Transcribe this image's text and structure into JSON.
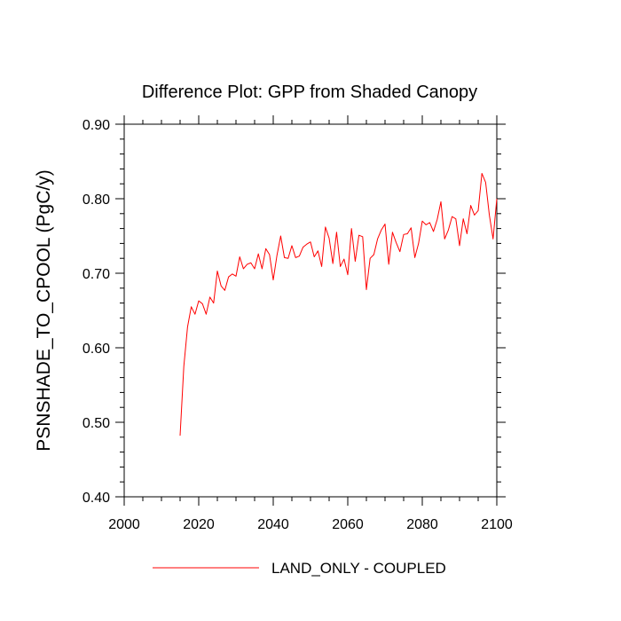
{
  "chart_data": {
    "type": "line",
    "title": "Difference Plot: GPP from Shaded Canopy",
    "xlabel": "",
    "ylabel": "PSNSHADE_TO_CPOOL  (PgC/y)",
    "xlim": [
      2000,
      2100
    ],
    "ylim": [
      0.4,
      0.9
    ],
    "x_ticks": [
      2000,
      2020,
      2040,
      2060,
      2080,
      2100
    ],
    "x_tick_labels": [
      "2000",
      "2020",
      "2040",
      "2060",
      "2080",
      "2100"
    ],
    "y_ticks": [
      0.4,
      0.5,
      0.6,
      0.7,
      0.8,
      0.9
    ],
    "y_tick_labels": [
      "0.40",
      "0.50",
      "0.60",
      "0.70",
      "0.80",
      "0.90"
    ],
    "legend_position": "bottom-center",
    "series": [
      {
        "name": "LAND_ONLY - COUPLED",
        "color": "#ff0000",
        "x": [
          2015,
          2016,
          2017,
          2018,
          2019,
          2020,
          2021,
          2022,
          2023,
          2024,
          2025,
          2026,
          2027,
          2028,
          2029,
          2030,
          2031,
          2032,
          2033,
          2034,
          2035,
          2036,
          2037,
          2038,
          2039,
          2040,
          2041,
          2042,
          2043,
          2044,
          2045,
          2046,
          2047,
          2048,
          2049,
          2050,
          2051,
          2052,
          2053,
          2054,
          2055,
          2056,
          2057,
          2058,
          2059,
          2060,
          2061,
          2062,
          2063,
          2064,
          2065,
          2066,
          2067,
          2068,
          2069,
          2070,
          2071,
          2072,
          2073,
          2074,
          2075,
          2076,
          2077,
          2078,
          2079,
          2080,
          2081,
          2082,
          2083,
          2084,
          2085,
          2086,
          2087,
          2088,
          2089,
          2090,
          2091,
          2092,
          2093,
          2094,
          2095,
          2096,
          2097,
          2098,
          2099,
          2100
        ],
        "values": [
          0.482,
          0.575,
          0.628,
          0.655,
          0.645,
          0.663,
          0.659,
          0.645,
          0.668,
          0.66,
          0.703,
          0.683,
          0.677,
          0.695,
          0.699,
          0.696,
          0.722,
          0.706,
          0.712,
          0.714,
          0.706,
          0.726,
          0.706,
          0.733,
          0.725,
          0.691,
          0.724,
          0.75,
          0.721,
          0.72,
          0.737,
          0.721,
          0.723,
          0.735,
          0.739,
          0.742,
          0.722,
          0.73,
          0.709,
          0.762,
          0.747,
          0.713,
          0.755,
          0.709,
          0.719,
          0.698,
          0.76,
          0.716,
          0.751,
          0.749,
          0.678,
          0.72,
          0.725,
          0.746,
          0.758,
          0.766,
          0.712,
          0.755,
          0.741,
          0.729,
          0.752,
          0.753,
          0.761,
          0.721,
          0.74,
          0.77,
          0.765,
          0.768,
          0.756,
          0.772,
          0.796,
          0.746,
          0.758,
          0.776,
          0.773,
          0.737,
          0.773,
          0.753,
          0.791,
          0.778,
          0.784,
          0.834,
          0.822,
          0.778,
          0.746,
          0.8
        ]
      }
    ]
  }
}
